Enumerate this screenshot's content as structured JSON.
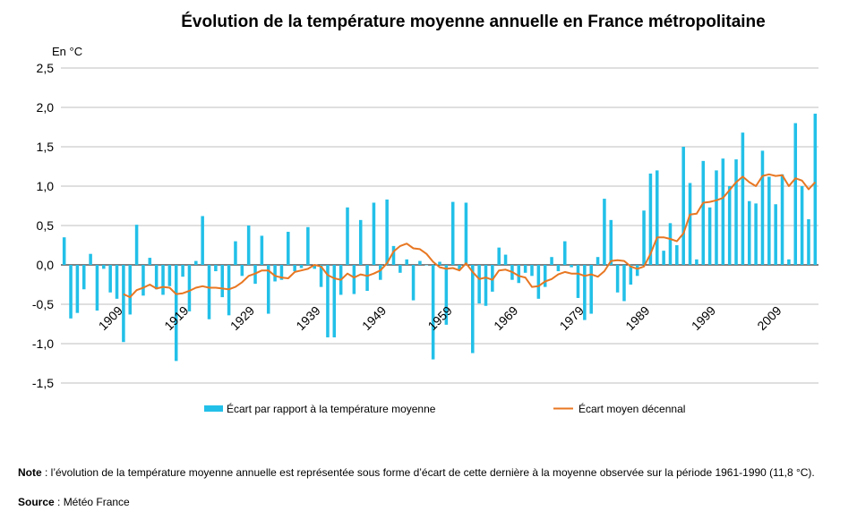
{
  "title": "Évolution de la température moyenne annuelle en France métropolitaine",
  "unit_label": "En °C",
  "note_label": "Note",
  "note_text": " : l’évolution de la température moyenne annuelle est représentée sous forme d’écart de cette dernière à la moyenne observée sur la période 1961-1990 (11,8 °C).",
  "source_label": "Source",
  "source_text": " : Météo France",
  "colors": {
    "bars": "#22C0E8",
    "line": "#E87722",
    "grid": "#BFBFBF",
    "axis": "#000000"
  },
  "chart_data": {
    "type": "bar",
    "title": "Évolution de la température moyenne annuelle en France métropolitaine",
    "ylabel": "En °C",
    "xlabel": "",
    "ylim": [
      -1.5,
      2.5
    ],
    "yticks": [
      "-1,5",
      "-1,0",
      "-0,5",
      "0,0",
      "0,5",
      "1,0",
      "1,5",
      "2,0",
      "2,5"
    ],
    "ytick_values": [
      -1.5,
      -1.0,
      -0.5,
      0.0,
      0.5,
      1.0,
      1.5,
      2.0,
      2.5
    ],
    "xtick_labels": [
      "1909",
      "1919",
      "1929",
      "1939",
      "1949",
      "1959",
      "1969",
      "1979",
      "1989",
      "1999",
      "2009"
    ],
    "grid": true,
    "legend_position": "bottom",
    "x": [
      1900,
      1901,
      1902,
      1903,
      1904,
      1905,
      1906,
      1907,
      1908,
      1909,
      1910,
      1911,
      1912,
      1913,
      1914,
      1915,
      1916,
      1917,
      1918,
      1919,
      1920,
      1921,
      1922,
      1923,
      1924,
      1925,
      1926,
      1927,
      1928,
      1929,
      1930,
      1931,
      1932,
      1933,
      1934,
      1935,
      1936,
      1937,
      1938,
      1939,
      1940,
      1941,
      1942,
      1943,
      1944,
      1945,
      1946,
      1947,
      1948,
      1949,
      1950,
      1951,
      1952,
      1953,
      1954,
      1955,
      1956,
      1957,
      1958,
      1959,
      1960,
      1961,
      1962,
      1963,
      1964,
      1965,
      1966,
      1967,
      1968,
      1969,
      1970,
      1971,
      1972,
      1973,
      1974,
      1975,
      1976,
      1977,
      1978,
      1979,
      1980,
      1981,
      1982,
      1983,
      1984,
      1985,
      1986,
      1987,
      1988,
      1989,
      1990,
      1991,
      1992,
      1993,
      1994,
      1995,
      1996,
      1997,
      1998,
      1999,
      2000,
      2001,
      2002,
      2003,
      2004,
      2005,
      2006,
      2007,
      2008,
      2009,
      2010,
      2011,
      2012,
      2013,
      2014
    ],
    "series": [
      {
        "name": "Écart par rapport à la température moyenne",
        "type": "bar",
        "values": [
          0.35,
          -0.68,
          -0.61,
          -0.31,
          0.14,
          -0.58,
          -0.05,
          -0.35,
          -0.43,
          -0.98,
          -0.63,
          0.51,
          -0.39,
          0.09,
          -0.31,
          -0.38,
          -0.27,
          -1.22,
          -0.15,
          -0.59,
          0.05,
          0.62,
          -0.69,
          -0.08,
          -0.41,
          -0.64,
          0.3,
          -0.14,
          0.5,
          -0.24,
          0.37,
          -0.62,
          -0.21,
          -0.19,
          0.42,
          -0.08,
          -0.04,
          0.48,
          -0.05,
          -0.28,
          -0.92,
          -0.92,
          -0.38,
          0.73,
          -0.37,
          0.57,
          -0.33,
          0.79,
          -0.19,
          0.83,
          0.24,
          -0.1,
          0.07,
          -0.45,
          0.05,
          0.0,
          -1.2,
          0.04,
          -0.76,
          0.8,
          -0.06,
          0.79,
          -1.12,
          -0.49,
          -0.52,
          -0.34,
          0.22,
          0.13,
          -0.19,
          -0.23,
          -0.1,
          -0.14,
          -0.43,
          -0.28,
          0.1,
          -0.08,
          0.3,
          -0.03,
          -0.42,
          -0.7,
          -0.62,
          0.1,
          0.84,
          0.57,
          -0.35,
          -0.46,
          -0.25,
          -0.14,
          0.69,
          1.16,
          1.2,
          0.18,
          0.53,
          0.25,
          1.5,
          1.04,
          0.07,
          1.32,
          0.73,
          1.2,
          1.35,
          1.0,
          1.34,
          1.68,
          0.81,
          0.78,
          1.45,
          1.12,
          0.77,
          1.15,
          0.07,
          1.8,
          1.0,
          0.58,
          1.92
        ]
      },
      {
        "name": "Écart moyen décennal",
        "type": "line",
        "values": [
          null,
          null,
          null,
          null,
          null,
          null,
          null,
          null,
          null,
          -0.37,
          -0.41,
          -0.32,
          -0.29,
          -0.25,
          -0.3,
          -0.28,
          -0.29,
          -0.37,
          -0.36,
          -0.33,
          -0.29,
          -0.27,
          -0.29,
          -0.29,
          -0.3,
          -0.31,
          -0.28,
          -0.22,
          -0.14,
          -0.11,
          -0.07,
          -0.07,
          -0.14,
          -0.16,
          -0.17,
          -0.09,
          -0.07,
          -0.05,
          0.0,
          -0.02,
          -0.13,
          -0.17,
          -0.19,
          -0.11,
          -0.16,
          -0.12,
          -0.14,
          -0.11,
          -0.07,
          0.02,
          0.17,
          0.24,
          0.27,
          0.21,
          0.2,
          0.14,
          0.04,
          -0.03,
          -0.05,
          -0.04,
          -0.07,
          0.02,
          -0.09,
          -0.18,
          -0.16,
          -0.19,
          -0.07,
          -0.06,
          -0.09,
          -0.14,
          -0.16,
          -0.28,
          -0.27,
          -0.21,
          -0.18,
          -0.12,
          -0.09,
          -0.11,
          -0.11,
          -0.14,
          -0.12,
          -0.15,
          -0.08,
          0.05,
          0.06,
          0.05,
          -0.02,
          -0.05,
          -0.02,
          0.14,
          0.35,
          0.35,
          0.33,
          0.3,
          0.4,
          0.64,
          0.65,
          0.79,
          0.8,
          0.82,
          0.85,
          0.95,
          1.05,
          1.12,
          1.05,
          1.0,
          1.13,
          1.15,
          1.13,
          1.14,
          1.0,
          1.1,
          1.07,
          0.96,
          1.05
        ]
      }
    ]
  }
}
